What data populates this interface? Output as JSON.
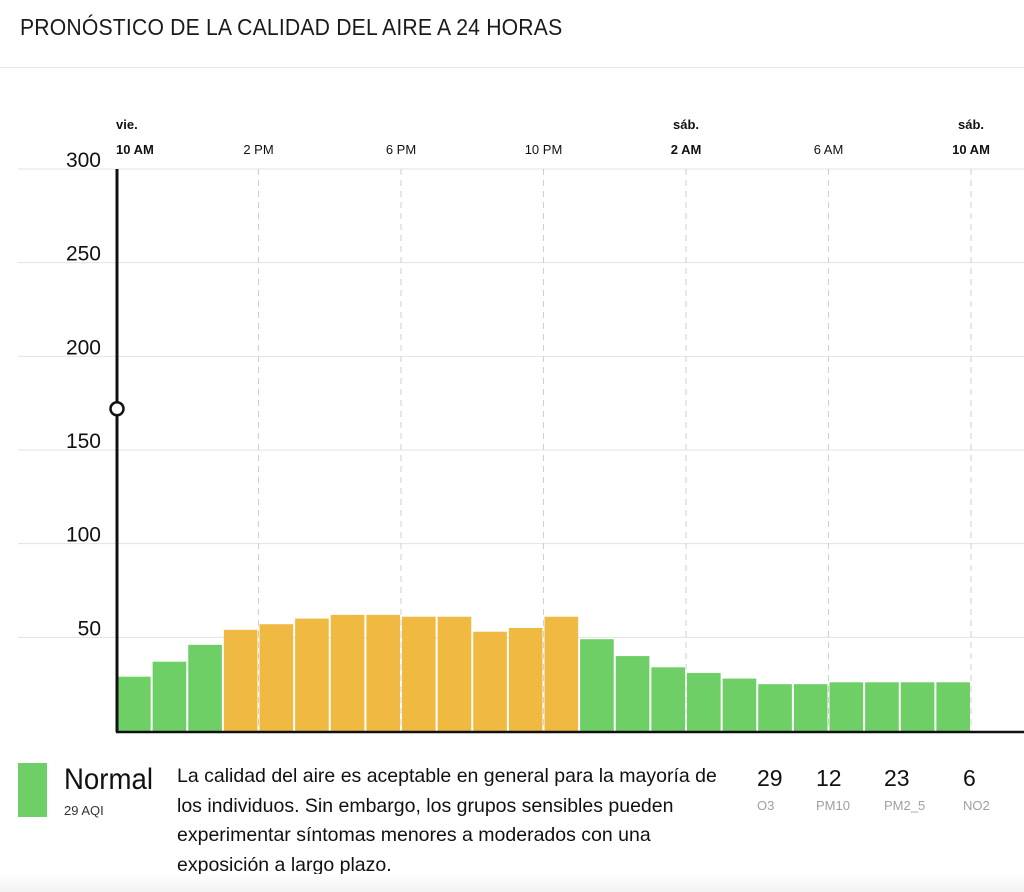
{
  "page": {
    "title": "PRONÓSTICO DE LA CALIDAD DEL AIRE A 24 HORAS"
  },
  "chart_data": {
    "type": "bar",
    "ylim": [
      0,
      300
    ],
    "y_ticks": [
      "300",
      "250",
      "200",
      "150",
      "100",
      "50"
    ],
    "y_tick_values": [
      300,
      250,
      200,
      150,
      100,
      50
    ],
    "x_axis": [
      {
        "day": "vie.",
        "time": "10 AM",
        "bold": true,
        "hour_index": 0
      },
      {
        "day": "",
        "time": "2 PM",
        "bold": false,
        "hour_index": 4
      },
      {
        "day": "",
        "time": "6 PM",
        "bold": false,
        "hour_index": 8
      },
      {
        "day": "",
        "time": "10 PM",
        "bold": false,
        "hour_index": 12
      },
      {
        "day": "sáb.",
        "time": "2 AM",
        "bold": true,
        "hour_index": 16
      },
      {
        "day": "",
        "time": "6 AM",
        "bold": false,
        "hour_index": 20
      },
      {
        "day": "sáb.",
        "time": "10 AM",
        "bold": true,
        "hour_index": 24
      }
    ],
    "values": [
      29,
      37,
      46,
      54,
      57,
      60,
      62,
      62,
      61,
      61,
      53,
      55,
      61,
      49,
      40,
      34,
      31,
      28,
      25,
      25,
      26,
      26,
      26,
      26
    ],
    "bar_levels": [
      "good",
      "good",
      "good",
      "moderate",
      "moderate",
      "moderate",
      "moderate",
      "moderate",
      "moderate",
      "moderate",
      "moderate",
      "moderate",
      "moderate",
      "good",
      "good",
      "good",
      "good",
      "good",
      "good",
      "good",
      "good",
      "good",
      "good",
      "good"
    ],
    "colors": {
      "good": "#6dcf66",
      "moderate": "#f0b941"
    },
    "current_marker_value": 172,
    "grid": true
  },
  "current": {
    "category": "Normal",
    "aqi_text": "29 AQI",
    "color": "#6dcf66",
    "description": "La calidad del aire es aceptable en general para la mayoría de los individuos. Sin embargo, los grupos sensibles pueden experimentar síntomas menores a moderados con una exposición a largo plazo."
  },
  "pollutants": [
    {
      "value": "29",
      "name": "O3"
    },
    {
      "value": "12",
      "name": "PM10"
    },
    {
      "value": "23",
      "name": "PM2_5"
    },
    {
      "value": "6",
      "name": "NO2"
    }
  ]
}
